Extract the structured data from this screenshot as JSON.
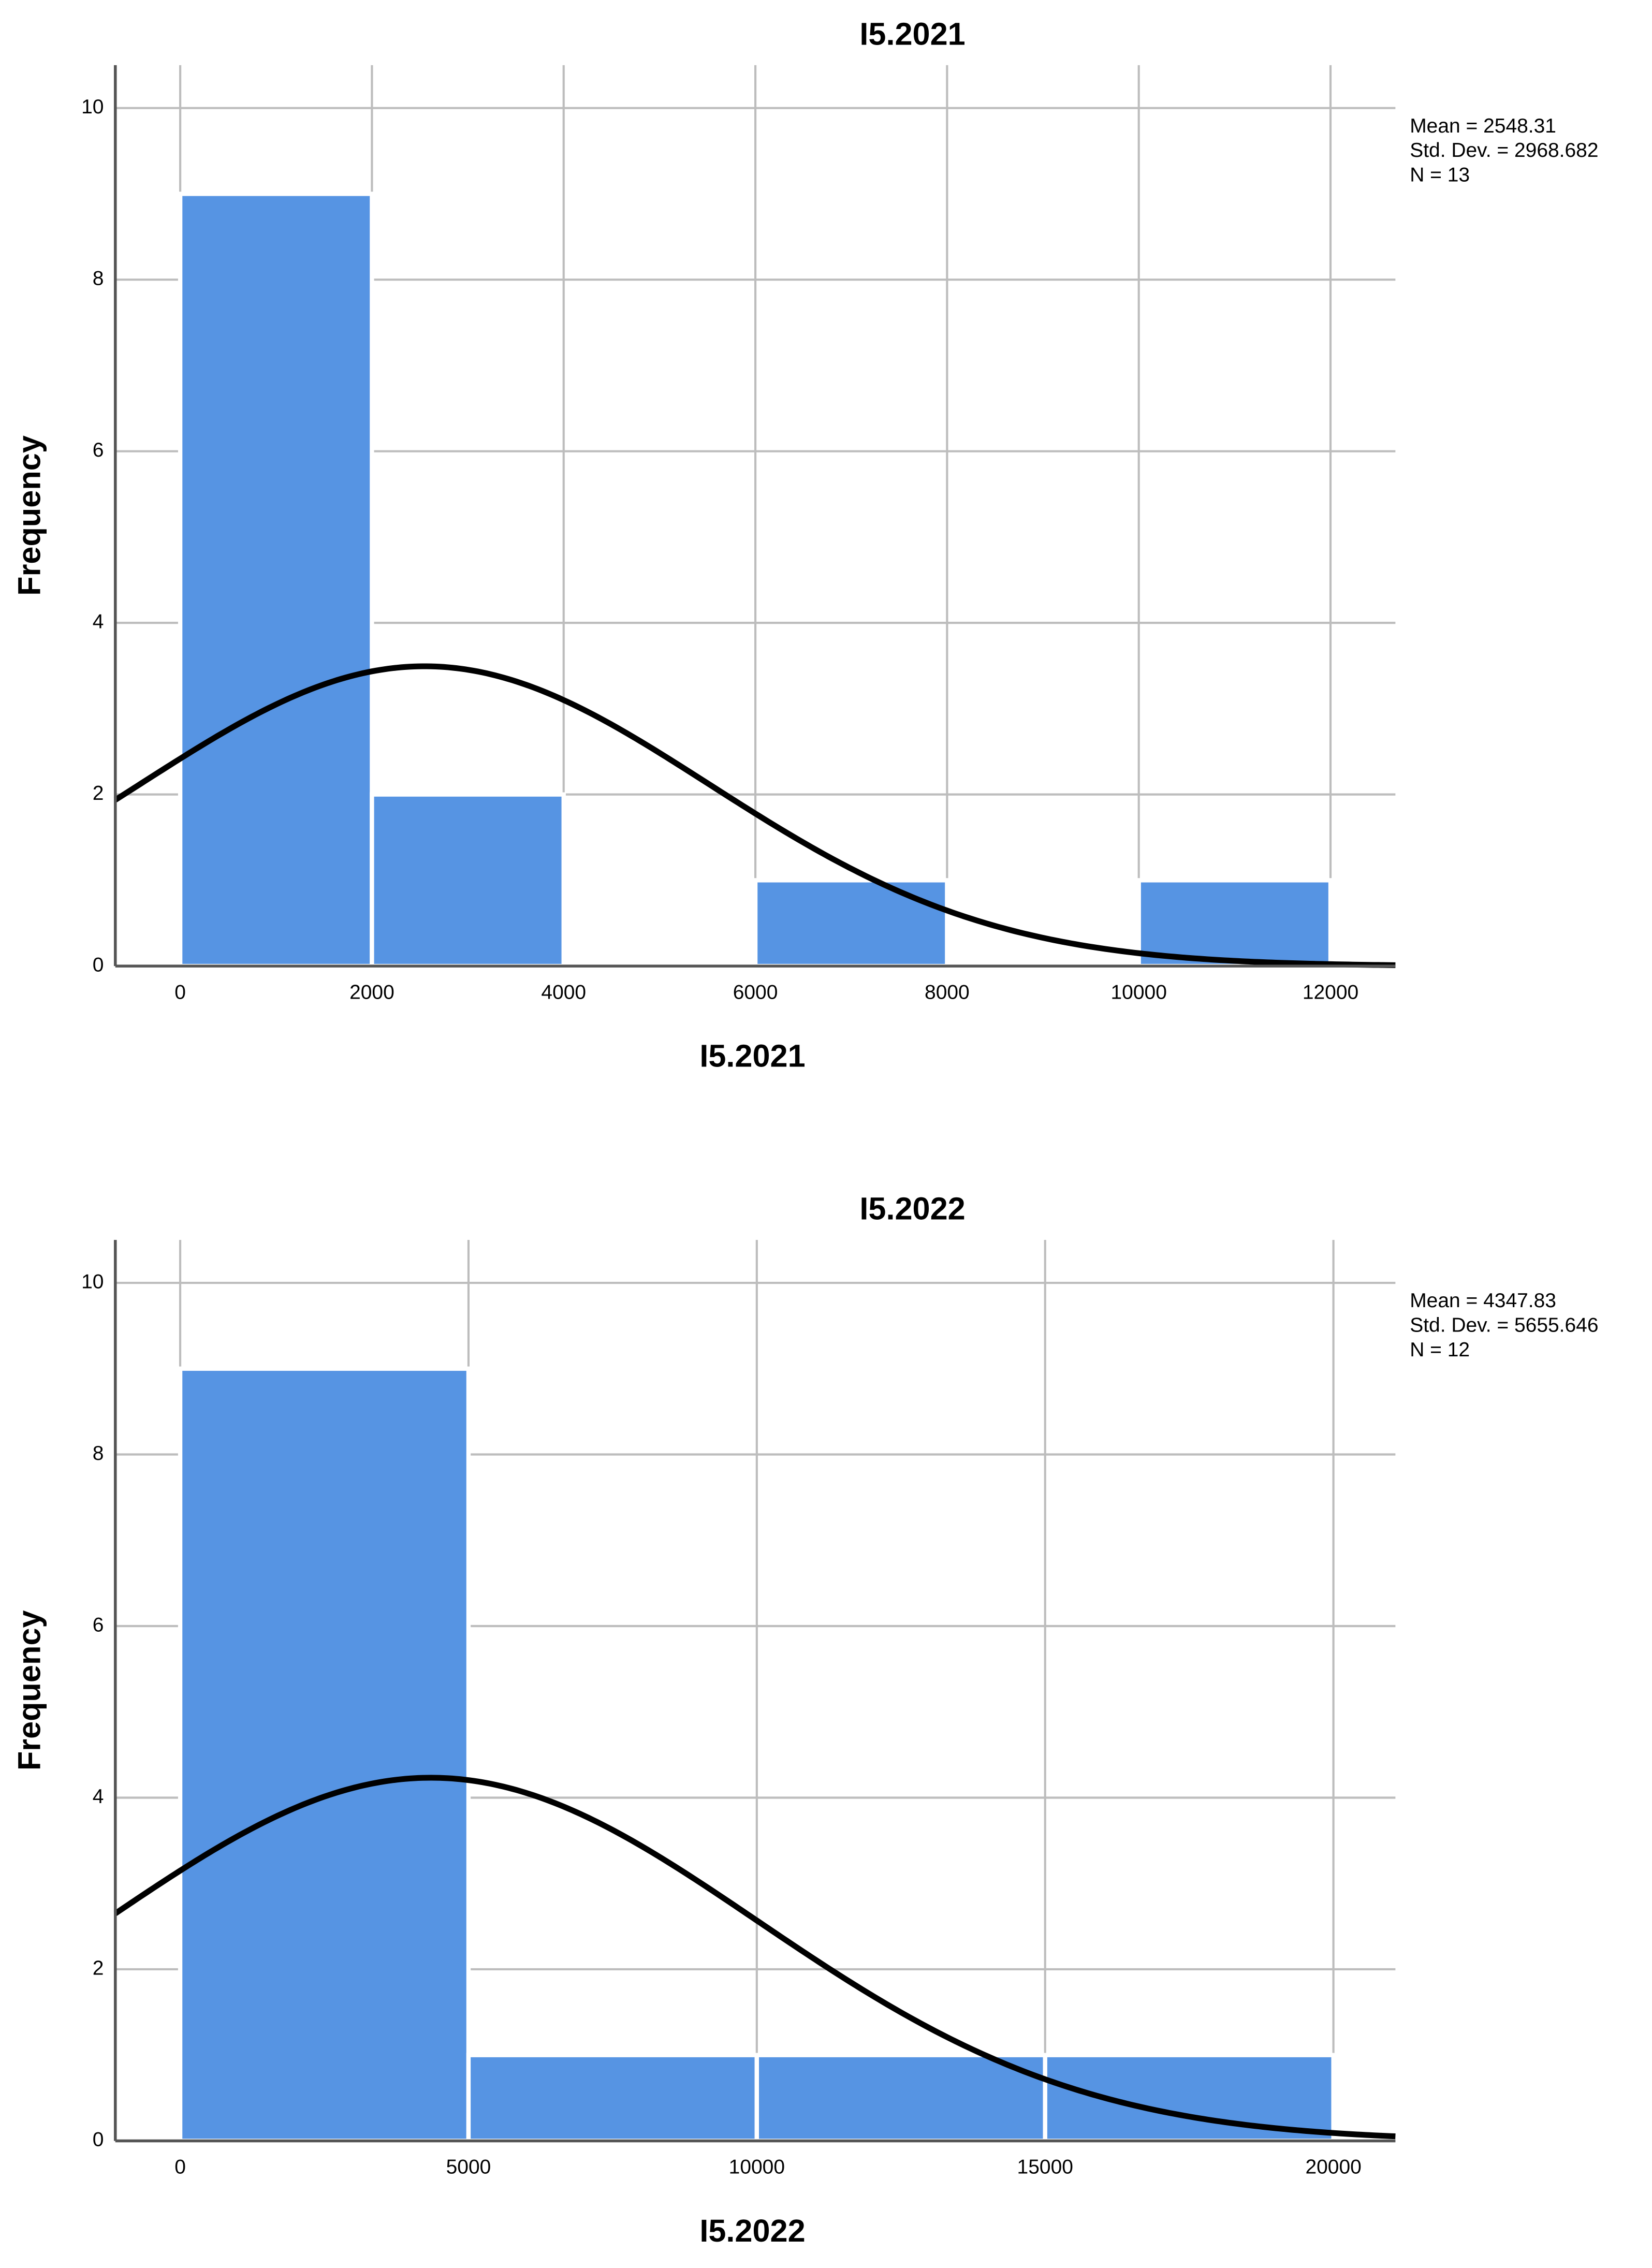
{
  "chart_data": [
    {
      "type": "histogram",
      "title": "I5.2021",
      "x_label": "I5.2021",
      "y_label": "Frequency",
      "bins": [
        0,
        2000,
        4000,
        6000,
        8000,
        10000,
        12000
      ],
      "values": [
        9,
        2,
        0,
        1,
        0,
        1
      ],
      "color": "#5694e3",
      "xlim": [
        -677,
        12677
      ],
      "ylim": [
        0,
        10.5
      ],
      "xticks": [
        0,
        2000,
        4000,
        6000,
        8000,
        10000,
        12000
      ],
      "yticks": [
        0,
        2,
        4,
        6,
        8,
        10
      ],
      "grid": true,
      "stats": {
        "mean": {
          "value": 2548.31,
          "label": "Mean = 2548.31"
        },
        "std_dev": {
          "value": 2968.682,
          "label": "Std. Dev. = 2968.682"
        },
        "n": {
          "value": 13,
          "label": "N = 13"
        }
      }
    },
    {
      "type": "histogram",
      "title": "I5.2022",
      "x_label": "I5.2022",
      "y_label": "Frequency",
      "bins": [
        0,
        5000,
        10000,
        15000,
        20000
      ],
      "values": [
        9,
        1,
        1,
        1
      ],
      "color": "#5694e3",
      "xlim": [
        -1125,
        21075
      ],
      "ylim": [
        0,
        10.5
      ],
      "xticks": [
        0,
        5000,
        10000,
        15000,
        20000
      ],
      "yticks": [
        0,
        2,
        4,
        6,
        8,
        10
      ],
      "grid": true,
      "stats": {
        "mean": {
          "value": 4347.83,
          "label": "Mean = 4347.83"
        },
        "std_dev": {
          "value": 5655.646,
          "label": "Std. Dev. = 5655.646"
        },
        "n": {
          "value": 12,
          "label": "N = 12"
        }
      }
    }
  ]
}
